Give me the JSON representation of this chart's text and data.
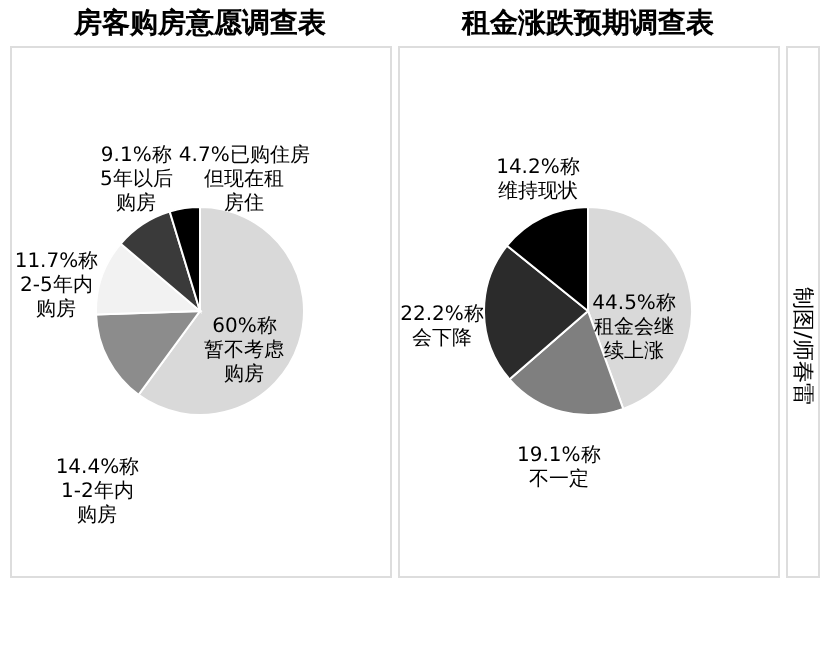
{
  "chart_data": [
    {
      "type": "pie",
      "title": "房客购房意愿调查表",
      "categories": [
        "暂不考虑购房",
        "1-2年内购房",
        "2-5年内购房",
        "5年以后购房",
        "但现在租房住"
      ],
      "values": [
        60,
        14.4,
        11.7,
        9.1,
        4.7
      ],
      "value_labels": [
        "60%称",
        "14.4%称",
        "11.7%称",
        "9.1%称",
        "4.7%已购住房"
      ],
      "colors": [
        "#d9d9d9",
        "#8c8c8c",
        "#f2f2f2",
        "#3a3a3a",
        "#000000"
      ],
      "legend": false
    },
    {
      "type": "pie",
      "title": "租金涨跌预期调查表",
      "categories": [
        "租金会继续上涨",
        "不一定",
        "会下降",
        "维持现状"
      ],
      "values": [
        44.5,
        19.1,
        22.2,
        14.2
      ],
      "value_labels": [
        "44.5%称",
        "19.1%称",
        "22.2%称",
        "14.2%称"
      ],
      "colors": [
        "#d9d9d9",
        "#7f7f7f",
        "#2b2b2b",
        "#000000"
      ],
      "legend": false,
      "annotations": [
        "制图/师春雷"
      ]
    }
  ]
}
